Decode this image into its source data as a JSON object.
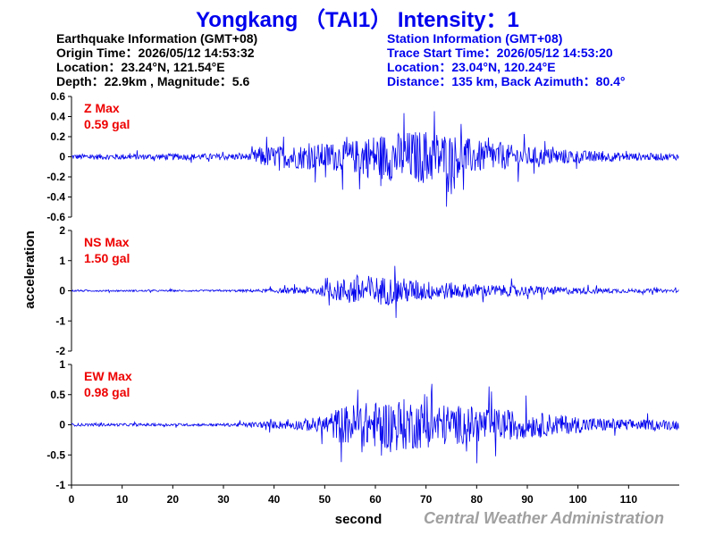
{
  "header": {
    "title": "Yongkang （TAI1） Intensity：1"
  },
  "earthquake_info": {
    "heading": "Earthquake Information  (GMT+08)",
    "origin_time": "Origin Time：2026/05/12 14:53:32",
    "location": "Location：23.24°N, 121.54°E",
    "depth_magnitude": "Depth：22.9km , Magnitude：5.6"
  },
  "station_info": {
    "heading": "Station Information  (GMT+08)",
    "trace_start": "Trace Start Time：2026/05/12 14:53:20",
    "location": "Location：23.04°N, 120.24°E",
    "distance_azimuth": "Distance：135 km, Back Azimuth：80.4°"
  },
  "footer": {
    "credit": "Central Weather Administration"
  },
  "colors": {
    "trace": "#0000ee",
    "max_label": "#ee0000",
    "title": "#0000ee",
    "credit": "#a0a0a0"
  },
  "chart_data": {
    "type": "line",
    "xlabel": "second",
    "ylabel": "acceleration",
    "xlim": [
      0,
      120
    ],
    "x_ticks": [
      0,
      10,
      20,
      30,
      40,
      50,
      60,
      70,
      80,
      90,
      100,
      110
    ],
    "grid": false,
    "panels": [
      {
        "name": "Z",
        "max_label": "Z Max",
        "max_value": "0.59 gal",
        "peak": 0.59,
        "ylim": [
          -0.6,
          0.6
        ],
        "y_ticks": [
          "0.6",
          "0.4",
          "0.2",
          "0",
          "-0.2",
          "-0.4",
          "-0.6"
        ],
        "y_tick_values": [
          0.6,
          0.4,
          0.2,
          0,
          -0.2,
          -0.4,
          -0.6
        ],
        "envelope": {
          "t": [
            0,
            35,
            37,
            45,
            55,
            60,
            65,
            70,
            75,
            80,
            90,
            100,
            110,
            120
          ],
          "amp": [
            0.05,
            0.06,
            0.18,
            0.22,
            0.28,
            0.42,
            0.45,
            0.5,
            0.42,
            0.3,
            0.18,
            0.12,
            0.07,
            0.06
          ]
        }
      },
      {
        "name": "NS",
        "max_label": "NS Max",
        "max_value": "1.50 gal",
        "peak": 1.5,
        "ylim": [
          -2,
          2
        ],
        "y_ticks": [
          "2",
          "1",
          "0",
          "-1",
          "-2"
        ],
        "y_tick_values": [
          2,
          1,
          0,
          -1,
          -2
        ],
        "envelope": {
          "t": [
            0,
            30,
            38,
            45,
            50,
            54,
            56,
            60,
            65,
            70,
            80,
            90,
            100,
            110,
            120
          ],
          "amp": [
            0.05,
            0.05,
            0.1,
            0.2,
            0.35,
            0.8,
            1.0,
            0.9,
            0.8,
            0.6,
            0.4,
            0.3,
            0.2,
            0.12,
            0.1
          ]
        }
      },
      {
        "name": "EW",
        "max_label": "EW Max",
        "max_value": "0.98 gal",
        "peak": 0.98,
        "ylim": [
          -1,
          1
        ],
        "y_ticks": [
          "1",
          "0.5",
          "0",
          "-0.5",
          "-1"
        ],
        "y_tick_values": [
          1,
          0.5,
          0,
          -0.5,
          -1
        ],
        "envelope": {
          "t": [
            0,
            30,
            38,
            45,
            50,
            53,
            56,
            60,
            65,
            70,
            75,
            80,
            90,
            100,
            110,
            120
          ],
          "amp": [
            0.04,
            0.04,
            0.1,
            0.15,
            0.28,
            0.55,
            0.65,
            0.7,
            0.8,
            0.7,
            0.6,
            0.55,
            0.4,
            0.25,
            0.16,
            0.15
          ]
        }
      }
    ]
  }
}
